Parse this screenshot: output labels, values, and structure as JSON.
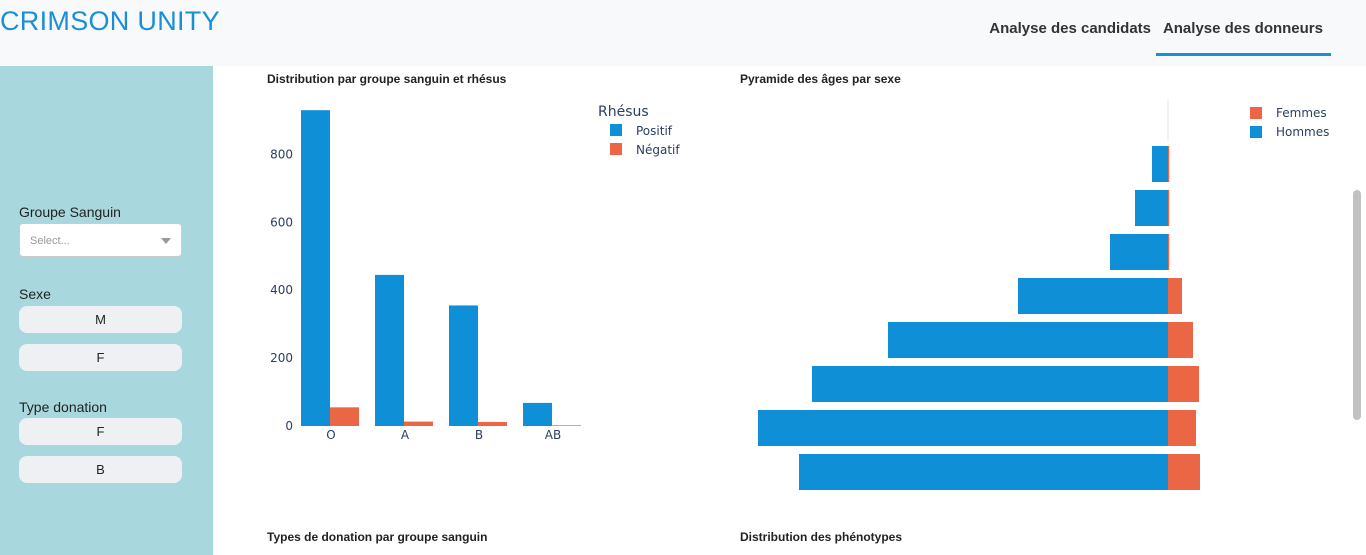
{
  "app": {
    "brand": "CRIMSON UNITY"
  },
  "tabs": [
    {
      "label": "Analyse des candidats",
      "active": false
    },
    {
      "label": "Analyse des donneurs",
      "active": true
    }
  ],
  "sidebar": {
    "blood_group": {
      "label": "Groupe Sanguin",
      "placeholder": "Select..."
    },
    "sex": {
      "label": "Sexe",
      "options": [
        "M",
        "F"
      ]
    },
    "donation_type": {
      "label": "Type donation",
      "options": [
        "F",
        "B"
      ]
    }
  },
  "colors": {
    "positive": "#0f8fd6",
    "negative": "#eb6645",
    "men": "#0f8fd6",
    "women": "#eb6645",
    "sidebar": "#a8d8de",
    "accent": "#1a8fd6"
  },
  "charts": {
    "blood_group_title": "Distribution par groupe sanguin et rhésus",
    "age_pyramid_title": "Pyramide des âges par sexe",
    "donation_type_title": "Types de donation par groupe sanguin",
    "phenotype_title": "Distribution des phénotypes"
  },
  "chart_data": [
    {
      "type": "bar",
      "title": "Distribution par groupe sanguin et rhésus",
      "categories": [
        "O",
        "A",
        "B",
        "AB"
      ],
      "legend_title": "Rhésus",
      "legend_position": "top-right",
      "series": [
        {
          "name": "Positif",
          "values": [
            930,
            445,
            355,
            68
          ]
        },
        {
          "name": "Négatif",
          "values": [
            55,
            13,
            12,
            2
          ]
        }
      ],
      "y_ticks": [
        0,
        200,
        400,
        600,
        800
      ],
      "ylim": [
        0,
        960
      ],
      "grid": false
    },
    {
      "type": "bar",
      "orientation": "horizontal",
      "title": "Pyramide des âges par sexe",
      "legend_position": "top-right",
      "series": [
        {
          "name": "Femmes",
          "values": [
            0,
            0,
            0,
            14,
            25,
            31,
            28,
            32
          ]
        },
        {
          "name": "Hommes",
          "values": [
            16,
            33,
            58,
            150,
            280,
            356,
            410,
            369
          ]
        }
      ],
      "grid": false
    }
  ]
}
